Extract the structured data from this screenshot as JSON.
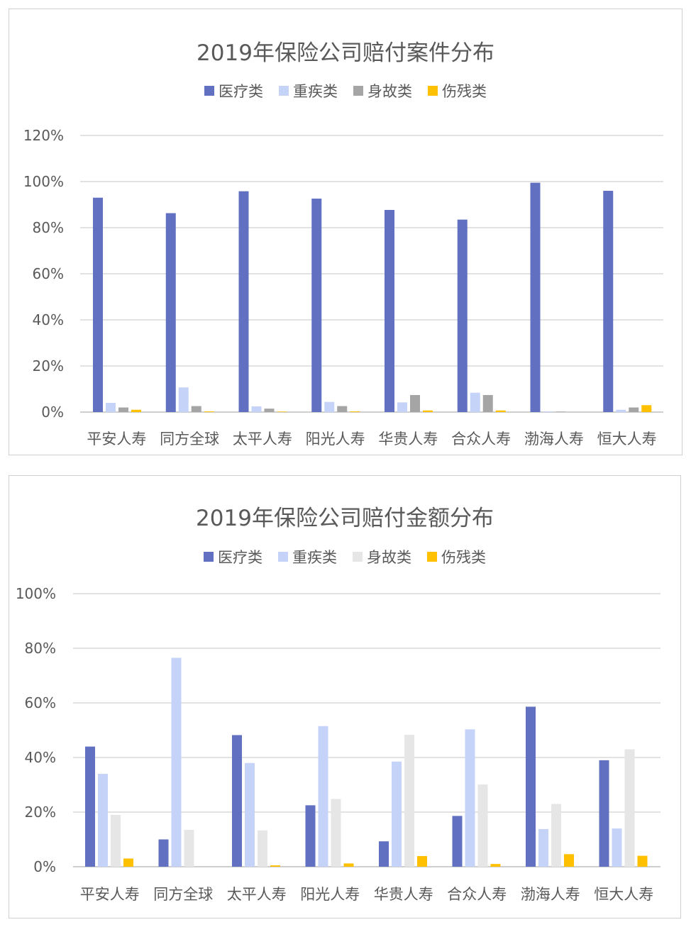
{
  "chart_data": [
    {
      "type": "bar",
      "title": "2019年保险公司赔付案件分布",
      "categories": [
        "平安人寿",
        "同方全球",
        "太平人寿",
        "阳光人寿",
        "华贵人寿",
        "合众人寿",
        "渤海人寿",
        "恒大人寿"
      ],
      "ylim": [
        0,
        120
      ],
      "yticks": [
        "0%",
        "20%",
        "40%",
        "60%",
        "80%",
        "100%",
        "120%"
      ],
      "grid": true,
      "legend_position": "top",
      "series": [
        {
          "name": "医疗类",
          "color": "#6170c0",
          "values": [
            93,
            86.3,
            95.8,
            92.6,
            87.7,
            83.5,
            99.5,
            96
          ]
        },
        {
          "name": "重疾类",
          "color": "#c5d3f8",
          "values": [
            4,
            10.7,
            2.5,
            4.4,
            4.2,
            8.4,
            0.3,
            1
          ]
        },
        {
          "name": "身故类",
          "color": "#a5a5a5",
          "values": [
            2,
            2.6,
            1.5,
            2.6,
            7.4,
            7.4,
            0.2,
            2
          ]
        },
        {
          "name": "伤残类",
          "color": "#ffc000",
          "values": [
            1,
            0.3,
            0.2,
            0.3,
            0.7,
            0.7,
            0,
            3
          ]
        }
      ]
    },
    {
      "type": "bar",
      "title": "2019年保险公司赔付金额分布",
      "categories": [
        "平安人寿",
        "同方全球",
        "太平人寿",
        "阳光人寿",
        "华贵人寿",
        "合众人寿",
        "渤海人寿",
        "恒大人寿"
      ],
      "ylim": [
        0,
        100
      ],
      "yticks": [
        "0%",
        "20%",
        "40%",
        "60%",
        "80%",
        "100%"
      ],
      "grid": true,
      "legend_position": "top",
      "series": [
        {
          "name": "医疗类",
          "color": "#6170c0",
          "values": [
            44,
            10,
            48.2,
            22.5,
            9.3,
            18.6,
            58.6,
            39
          ]
        },
        {
          "name": "重疾类",
          "color": "#c5d3f8",
          "values": [
            34,
            76.5,
            38,
            51.5,
            38.5,
            50.3,
            13.8,
            14
          ]
        },
        {
          "name": "身故类",
          "color": "#e6e6e6",
          "values": [
            19,
            13.5,
            13.3,
            24.8,
            48.3,
            30.1,
            23,
            43
          ]
        },
        {
          "name": "伤残类",
          "color": "#ffc000",
          "values": [
            3,
            0,
            0.5,
            1.2,
            3.9,
            1,
            4.6,
            4
          ]
        }
      ]
    }
  ]
}
